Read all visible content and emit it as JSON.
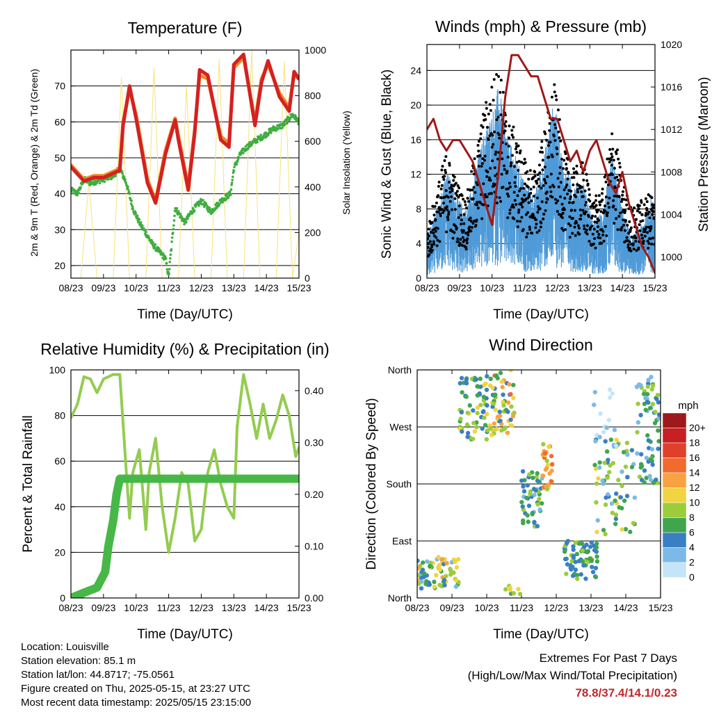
{
  "station": {
    "location": "Location: Louisville",
    "elevation": "Station elevation: 85.1 m",
    "latlon": "Station lat/lon: 44.8717; -75.0561",
    "created": "Figure created on Thu, 2025-05-15, at 23:27 UTC",
    "recent": "Most recent data timestamp: 2025/05/15 23:15:00"
  },
  "extremes": {
    "title": "Extremes For Past 7 Days",
    "subtitle": "(High/Low/Max Wind/Total Precipitation)",
    "values": "78.8/37.4/14.1/0.23"
  },
  "colors": {
    "temp2m": "#d42121",
    "temp9m": "#f08a24",
    "dewpoint": "#3fae3f",
    "solar": "#f7e27a",
    "wind": "#4f9bd8",
    "gust": "#000000",
    "pressure": "#a01818",
    "rh": "#93cc4f",
    "precip": "#47b847"
  },
  "chart_data": [
    {
      "type": "line",
      "title": "Temperature (F)",
      "xlabel": "Time (Day/UTC)",
      "ylabel": "2m & 9m T (Red, Orange) & 2m Td (Green)",
      "y2label": "Solar Insolation (Yellow)",
      "xticks": [
        "08/23",
        "09/23",
        "10/23",
        "11/23",
        "12/23",
        "13/23",
        "14/23",
        "15/23"
      ],
      "xlim": [
        0,
        7
      ],
      "ylim": [
        16.5,
        80
      ],
      "yticks": [
        20,
        30,
        40,
        50,
        60,
        70
      ],
      "y2lim": [
        0,
        1000
      ],
      "y2ticks": [
        0,
        200,
        400,
        600,
        800,
        1000
      ],
      "series": [
        {
          "color": "#f08a24",
          "width": 5,
          "x": [
            0,
            0.4,
            0.7,
            1.0,
            1.5,
            1.6,
            1.8,
            2.0,
            2.35,
            2.6,
            2.9,
            3.2,
            3.3,
            3.6,
            3.8,
            3.95,
            4.2,
            4.6,
            4.85,
            5.0,
            5.3,
            5.65,
            5.85,
            6.05,
            6.4,
            6.7,
            6.85,
            7.0
          ],
          "y": [
            48,
            44,
            45,
            45,
            47,
            60,
            69,
            62,
            44,
            38,
            52,
            61,
            56,
            42,
            58,
            73,
            72,
            56,
            54,
            75,
            78,
            60,
            72,
            76,
            68,
            64,
            73,
            72
          ]
        },
        {
          "color": "#d42121",
          "width": 5,
          "x": [
            0,
            0.4,
            0.7,
            1.0,
            1.5,
            1.6,
            1.8,
            2.0,
            2.35,
            2.6,
            2.9,
            3.2,
            3.3,
            3.6,
            3.8,
            3.95,
            4.2,
            4.6,
            4.85,
            5.0,
            5.3,
            5.65,
            5.85,
            6.05,
            6.4,
            6.7,
            6.85,
            7.0
          ],
          "y": [
            47.5,
            43.5,
            44.5,
            44.5,
            46.5,
            59,
            70,
            61,
            43,
            37.4,
            51,
            60.5,
            55,
            41,
            57,
            74.5,
            73,
            55,
            53,
            76,
            78.8,
            59,
            71,
            77,
            67,
            63,
            74,
            72
          ]
        },
        {
          "color": "#3fae3f",
          "width": 2.5,
          "x": [
            0,
            0.2,
            0.4,
            0.6,
            1.0,
            1.3,
            1.5,
            1.7,
            1.9,
            2.1,
            2.3,
            2.5,
            2.7,
            2.9,
            3.0,
            3.2,
            3.5,
            3.7,
            4.0,
            4.3,
            4.6,
            4.9,
            5.0,
            5.2,
            5.4,
            5.7,
            5.9,
            6.2,
            6.5,
            6.8,
            7.0
          ],
          "y": [
            41,
            40,
            44,
            43,
            44,
            45,
            47,
            43,
            36,
            32,
            29,
            26,
            24,
            22,
            17,
            36,
            32,
            35,
            38,
            35,
            38,
            40,
            47,
            51,
            53,
            55,
            56,
            58,
            59,
            62,
            60
          ]
        },
        {
          "color": "#f7e27a",
          "width": 1,
          "axis": "right",
          "x": [
            0.3,
            0.55,
            0.8,
            1.3,
            1.55,
            1.8,
            2.3,
            2.55,
            2.8,
            3.3,
            3.55,
            3.8,
            4.3,
            4.55,
            4.8,
            5.3,
            5.55,
            5.8,
            6.3,
            6.55,
            6.8,
            7.0
          ],
          "y": [
            0,
            420,
            0,
            0,
            880,
            0,
            0,
            920,
            0,
            0,
            840,
            0,
            0,
            960,
            0,
            0,
            1000,
            0,
            0,
            950,
            0,
            200
          ]
        }
      ]
    },
    {
      "type": "line",
      "title": "Winds (mph) & Pressure (mb)",
      "xlabel": "Time (Day/UTC)",
      "ylabel": "Sonic Wind & Gust (Blue, Black)",
      "y2label": "Station Pressure (Maroon)",
      "xticks": [
        "08/23",
        "09/23",
        "10/23",
        "11/23",
        "12/23",
        "13/23",
        "14/23",
        "15/23"
      ],
      "xlim": [
        0,
        7
      ],
      "ylim": [
        0,
        27
      ],
      "yticks": [
        0,
        4,
        8,
        12,
        16,
        20,
        24
      ],
      "y2lim": [
        998,
        1020
      ],
      "y2ticks": [
        1000,
        1004,
        1008,
        1012,
        1016,
        1020
      ],
      "series": [
        {
          "color": "#000000",
          "kind": "band",
          "x": [
            0,
            0.3,
            0.6,
            0.9,
            1.2,
            1.5,
            1.8,
            2.0,
            2.2,
            2.5,
            2.7,
            3.0,
            3.3,
            3.6,
            3.9,
            4.2,
            4.5,
            4.8,
            5.1,
            5.4,
            5.7,
            6.0,
            6.3,
            6.6,
            6.9,
            7.0
          ],
          "y": [
            5,
            9,
            13,
            10,
            8,
            13,
            18,
            20,
            22,
            16,
            15,
            12,
            11,
            15,
            20,
            13,
            11,
            12,
            8,
            9,
            16,
            10,
            7,
            8,
            9,
            8
          ]
        },
        {
          "color": "#4f9bd8",
          "kind": "band",
          "x": [
            0,
            0.3,
            0.6,
            0.9,
            1.2,
            1.5,
            1.8,
            2.0,
            2.2,
            2.5,
            2.7,
            3.0,
            3.3,
            3.6,
            3.9,
            4.2,
            4.5,
            4.8,
            5.1,
            5.4,
            5.7,
            6.0,
            6.3,
            6.6,
            6.9,
            7.0
          ],
          "y": [
            3,
            5,
            8,
            6,
            5,
            8,
            11,
            12,
            14,
            10,
            9,
            7,
            6,
            9,
            13,
            8,
            7,
            7,
            4,
            5,
            9,
            5,
            3,
            4,
            6,
            5
          ]
        },
        {
          "color": "#a01818",
          "width": 3,
          "axis": "right",
          "x": [
            0,
            0.2,
            0.4,
            0.6,
            0.8,
            1.0,
            1.2,
            1.4,
            1.6,
            1.8,
            2.0,
            2.2,
            2.4,
            2.6,
            2.8,
            3.0,
            3.2,
            3.4,
            3.6,
            3.8,
            4.0,
            4.2,
            4.4,
            4.6,
            4.8,
            5.0,
            5.2,
            5.4,
            5.6,
            5.8,
            6.0,
            6.2,
            6.4,
            6.6,
            6.8,
            7.0
          ],
          "y": [
            1012,
            1013,
            1011,
            1010,
            1011,
            1011,
            1010,
            1009,
            1007,
            1005,
            1003,
            1008,
            1015,
            1019,
            1019,
            1018,
            1017,
            1017,
            1015,
            1013,
            1013,
            1011,
            1009,
            1010,
            1008,
            1010,
            1011,
            1009,
            1007,
            1006,
            1008,
            1005,
            1003,
            1001,
            1000,
            998.5
          ]
        }
      ]
    },
    {
      "type": "line",
      "title": "Relative Humidity (%) & Precipitation (in)",
      "xlabel": "Time (Day/UTC)",
      "ylabel": "Percent & Total Rainfall",
      "xticks": [
        "08/23",
        "09/23",
        "10/23",
        "11/23",
        "12/23",
        "13/23",
        "14/23",
        "15/23"
      ],
      "xlim": [
        0,
        7
      ],
      "ylim": [
        0,
        100
      ],
      "yticks": [
        0,
        20,
        40,
        60,
        80,
        100
      ],
      "y2lim": [
        0,
        0.44
      ],
      "y2ticks": [
        "0.00",
        "0.10",
        "0.20",
        "0.30",
        "0.40"
      ],
      "series": [
        {
          "color": "#93cc4f",
          "width": 4,
          "x": [
            0,
            0.2,
            0.4,
            0.6,
            0.8,
            1.0,
            1.3,
            1.5,
            1.7,
            1.8,
            1.9,
            2.1,
            2.3,
            2.4,
            2.6,
            2.8,
            3.0,
            3.2,
            3.4,
            3.6,
            3.8,
            4.0,
            4.2,
            4.4,
            4.6,
            4.8,
            5.0,
            5.1,
            5.3,
            5.5,
            5.7,
            5.9,
            6.1,
            6.3,
            6.5,
            6.7,
            6.9,
            7.0
          ],
          "y": [
            79,
            85,
            97,
            96,
            90,
            96,
            98,
            98,
            55,
            35,
            55,
            65,
            30,
            55,
            70,
            40,
            20,
            35,
            55,
            50,
            25,
            30,
            55,
            65,
            50,
            40,
            35,
            75,
            98,
            85,
            70,
            85,
            70,
            78,
            89,
            80,
            62,
            66
          ]
        },
        {
          "color": "#47b847",
          "width": 12,
          "axis": "right",
          "x": [
            0,
            0.4,
            0.8,
            1.05,
            1.15,
            1.3,
            1.4,
            1.5,
            1.6,
            2.0,
            3.0,
            4.0,
            5.0,
            6.0,
            7.0
          ],
          "y": [
            0,
            0.01,
            0.02,
            0.05,
            0.1,
            0.15,
            0.2,
            0.23,
            0.23,
            0.23,
            0.23,
            0.23,
            0.23,
            0.23,
            0.23
          ]
        }
      ]
    },
    {
      "type": "scatter",
      "title": "Wind Direction",
      "xlabel": "Time (Day/UTC)",
      "ylabel": "Direction (Colored By Speed)",
      "xticks": [
        "08/23",
        "09/23",
        "10/23",
        "11/23",
        "12/23",
        "13/23",
        "14/23",
        "15/23"
      ],
      "xlim": [
        0,
        7
      ],
      "ylim": [
        0,
        360
      ],
      "yticks": [
        {
          "label": "North",
          "value": 0
        },
        {
          "label": "East",
          "value": 90
        },
        {
          "label": "South",
          "value": 180
        },
        {
          "label": "West",
          "value": 270
        },
        {
          "label": "North",
          "value": 360
        }
      ],
      "legend": {
        "title": "mph",
        "labels": [
          "20+",
          "18",
          "16",
          "14",
          "12",
          "10",
          "8",
          "6",
          "4",
          "2",
          "0"
        ],
        "colors": [
          "#9e1a1a",
          "#c71f22",
          "#e0402a",
          "#f26a2d",
          "#f9a241",
          "#f0d441",
          "#9ccc3a",
          "#3fa64e",
          "#3a7fc4",
          "#7db9e8",
          "#c3e5f7"
        ]
      },
      "clusters": [
        {
          "x": [
            0.0,
            1.2
          ],
          "dir": [
            15,
            65
          ],
          "speed": [
            2,
            12
          ],
          "n": 70
        },
        {
          "x": [
            1.2,
            2.3
          ],
          "dir": [
            250,
            350
          ],
          "speed": [
            3,
            10
          ],
          "n": 80
        },
        {
          "x": [
            2.2,
            2.8
          ],
          "dir": [
            260,
            360
          ],
          "speed": [
            4,
            14
          ],
          "n": 50
        },
        {
          "x": [
            2.5,
            3.0
          ],
          "dir": [
            0,
            30
          ],
          "speed": [
            6,
            10
          ],
          "n": 8
        },
        {
          "x": [
            3.0,
            3.6
          ],
          "dir": [
            110,
            200
          ],
          "speed": [
            2,
            8
          ],
          "n": 50
        },
        {
          "x": [
            3.6,
            3.9
          ],
          "dir": [
            170,
            250
          ],
          "speed": [
            8,
            14
          ],
          "n": 30
        },
        {
          "x": [
            4.2,
            5.2
          ],
          "dir": [
            30,
            90
          ],
          "speed": [
            3,
            8
          ],
          "n": 70
        },
        {
          "x": [
            5.1,
            6.3
          ],
          "dir": [
            100,
            250
          ],
          "speed": [
            2,
            10
          ],
          "n": 70
        },
        {
          "x": [
            6.3,
            7.0
          ],
          "dir": [
            180,
            350
          ],
          "speed": [
            2,
            8
          ],
          "n": 70
        },
        {
          "x": [
            5.0,
            6.0
          ],
          "dir": [
            240,
            330
          ],
          "speed": [
            0,
            3
          ],
          "n": 14
        }
      ]
    }
  ]
}
